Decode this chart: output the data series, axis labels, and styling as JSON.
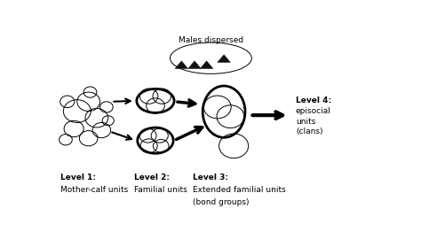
{
  "background_color": "#ffffff",
  "fig_width": 4.74,
  "fig_height": 2.79,
  "dpi": 100,
  "labels": {
    "males_dispersed": "Males dispersed",
    "level1_line1": "Level 1:",
    "level1_line2": "Mother-calf units",
    "level2_line1": "Level 2:",
    "level2_line2": "Familial units",
    "level3_line1": "Level 3:",
    "level3_line2": "Extended familial units",
    "level3_line3": "(bond groups)",
    "level4_line1": "Level 4:",
    "level4_line2": "episocial",
    "level4_line3": "units",
    "level4_line4": "(clans)"
  },
  "circle_color": "#000000",
  "thin_lw": 0.7,
  "thick_lw": 2.0,
  "arrow_color": "#000000",
  "triangle_color": "#111111",
  "font_size": 6.5
}
